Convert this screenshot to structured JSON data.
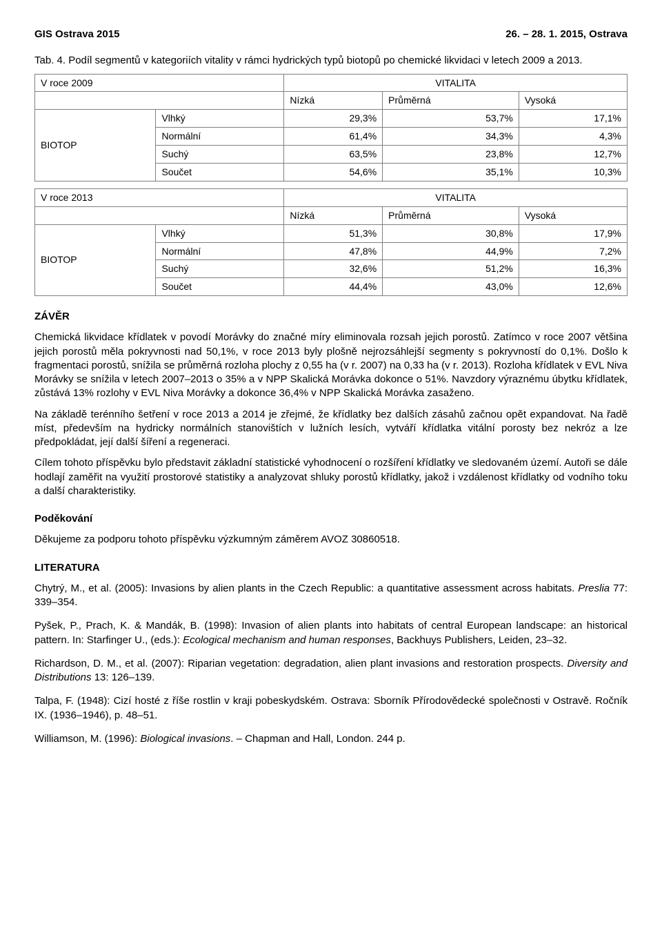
{
  "header": {
    "left": "GIS Ostrava 2015",
    "right": "26. – 28. 1. 2015, Ostrava"
  },
  "caption": "Tab. 4. Podíl segmentů v kategoriích vitality v rámci hydrických typů biotopů po chemické likvidaci v letech 2009 a 2013.",
  "table1": {
    "year": "V roce 2009",
    "vitalita": "VITALITA",
    "cols": [
      "Nízká",
      "Průměrná",
      "Vysoká"
    ],
    "biotop_label": "BIOTOP",
    "rows": [
      {
        "label": "Vlhký",
        "vals": [
          "29,3%",
          "53,7%",
          "17,1%"
        ]
      },
      {
        "label": "Normální",
        "vals": [
          "61,4%",
          "34,3%",
          "4,3%"
        ]
      },
      {
        "label": "Suchý",
        "vals": [
          "63,5%",
          "23,8%",
          "12,7%"
        ]
      },
      {
        "label": "Součet",
        "vals": [
          "54,6%",
          "35,1%",
          "10,3%"
        ]
      }
    ]
  },
  "table2": {
    "year": "V roce 2013",
    "vitalita": "VITALITA",
    "cols": [
      "Nízká",
      "Průměrná",
      "Vysoká"
    ],
    "biotop_label": "BIOTOP",
    "rows": [
      {
        "label": "Vlhký",
        "vals": [
          "51,3%",
          "30,8%",
          "17,9%"
        ]
      },
      {
        "label": "Normální",
        "vals": [
          "47,8%",
          "44,9%",
          "7,2%"
        ]
      },
      {
        "label": "Suchý",
        "vals": [
          "32,6%",
          "51,2%",
          "16,3%"
        ]
      },
      {
        "label": "Součet",
        "vals": [
          "44,4%",
          "43,0%",
          "12,6%"
        ]
      }
    ]
  },
  "sections": {
    "zaver_title": "ZÁVĚR",
    "zaver_p1": "Chemická likvidace křídlatek v povodí Morávky do značné míry eliminovala rozsah jejich porostů. Zatímco v roce 2007 většina jejich porostů měla pokryvnosti nad 50,1%, v roce 2013 byly plošně nejrozsáhlejší segmenty s pokryvností do 0,1%. Došlo k fragmentaci porostů, snížila se průměrná rozloha plochy z 0,55 ha (v r. 2007) na 0,33 ha (v r. 2013). Rozloha křídlatek v EVL Niva Morávky se snížila v letech 2007–2013 o 35% a v NPP Skalická Morávka dokonce o 51%. Navzdory výraznému úbytku křídlatek, zůstává 13% rozlohy v EVL Niva Morávky a dokonce 36,4% v NPP Skalická Morávka zasaženo.",
    "zaver_p2": "Na základě terénního šetření v roce 2013 a 2014 je zřejmé, že křídlatky bez dalších zásahů začnou opět expandovat. Na řadě míst, především na hydricky normálních stanovištích v lužních lesích, vytváří křídlatka vitální porosty bez nekróz a lze předpokládat, její další šíření a regeneraci.",
    "zaver_p3": "Cílem tohoto příspěvku bylo představit základní statistické vyhodnocení o rozšíření křídlatky ve sledovaném území. Autoři se dále hodlají zaměřit na využití prostorové statistiky a analyzovat shluky porostů křídlatky, jakož i vzdálenost křídlatky od vodního toku a další charakteristiky.",
    "ack_title": "Poděkování",
    "ack_p": "Děkujeme za podporu tohoto příspěvku výzkumným záměrem AVOZ 30860518.",
    "lit_title": "LITERATURA",
    "refs": {
      "r1a": "Chytrý, M., et al. (2005): Invasions by alien plants in the Czech Republic: a quantitative assessment across habitats. ",
      "r1b": "Preslia",
      "r1c": " 77: 339–354.",
      "r2a": "Pyšek, P., Prach, K. & Mandák, B. (1998): Invasion of alien plants into habitats of central European landscape: an historical pattern. In: Starfinger U., (eds.): ",
      "r2b": "Ecological mechanism and human responses",
      "r2c": ", Backhuys Publishers, Leiden, 23–32.",
      "r3a": "Richardson, D. M., et al. (2007): Riparian vegetation: degradation, alien plant invasions and restoration prospects. ",
      "r3b": "Diversity and Distributions",
      "r3c": " 13: 126–139.",
      "r4": "Talpa, F. (1948): Cizí hosté z říše rostlin v kraji pobeskydském. Ostrava: Sborník Přírodovědecké společnosti v Ostravě. Ročník IX. (1936–1946), p. 48–51.",
      "r5a": "Williamson, M. (1996): ",
      "r5b": "Biological invasions",
      "r5c": ". – Chapman and Hall, London. 244 p."
    }
  }
}
